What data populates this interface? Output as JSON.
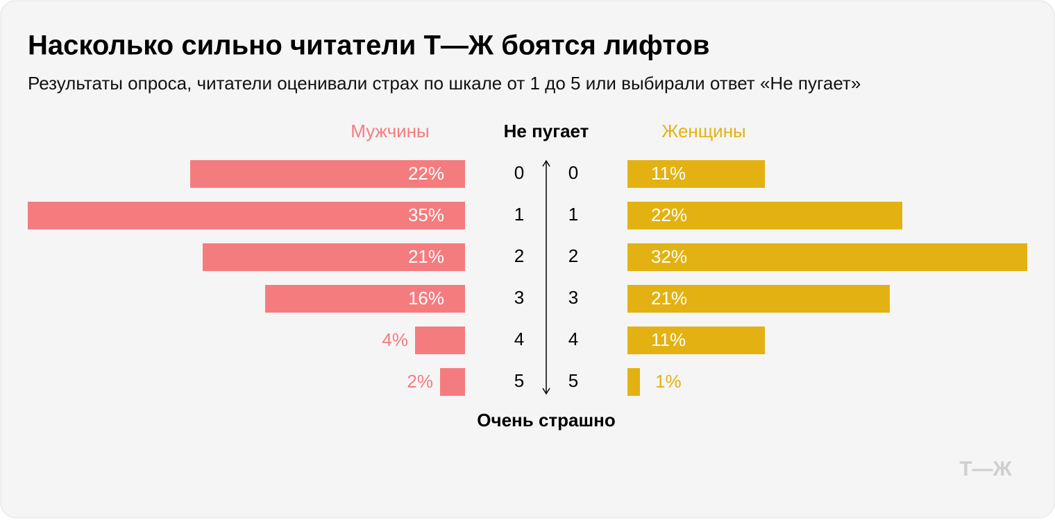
{
  "chart_data": {
    "type": "butterfly-bar",
    "title": "Насколько сильно читатели Т—Ж боятся лифтов",
    "subtitle": "Результаты опроса, читатели оценивали страх по шкале от 1 до 5 или выбирали ответ «Не пугает»",
    "top_label": "Не пугает",
    "bottom_label": "Очень страшно",
    "categories": [
      "0",
      "1",
      "2",
      "3",
      "4",
      "5"
    ],
    "series": [
      {
        "name": "Мужчины",
        "color": "#f47c7f",
        "values": [
          22,
          35,
          21,
          16,
          4,
          2
        ],
        "value_labels": [
          "22%",
          "35%",
          "21%",
          "16%",
          "4%",
          "2%"
        ]
      },
      {
        "name": "Женщины",
        "color": "#e3b212",
        "values": [
          11,
          22,
          32,
          21,
          11,
          1
        ],
        "value_labels": [
          "11%",
          "22%",
          "32%",
          "21%",
          "11%",
          "1%"
        ]
      }
    ],
    "logo": "Т—Ж"
  }
}
